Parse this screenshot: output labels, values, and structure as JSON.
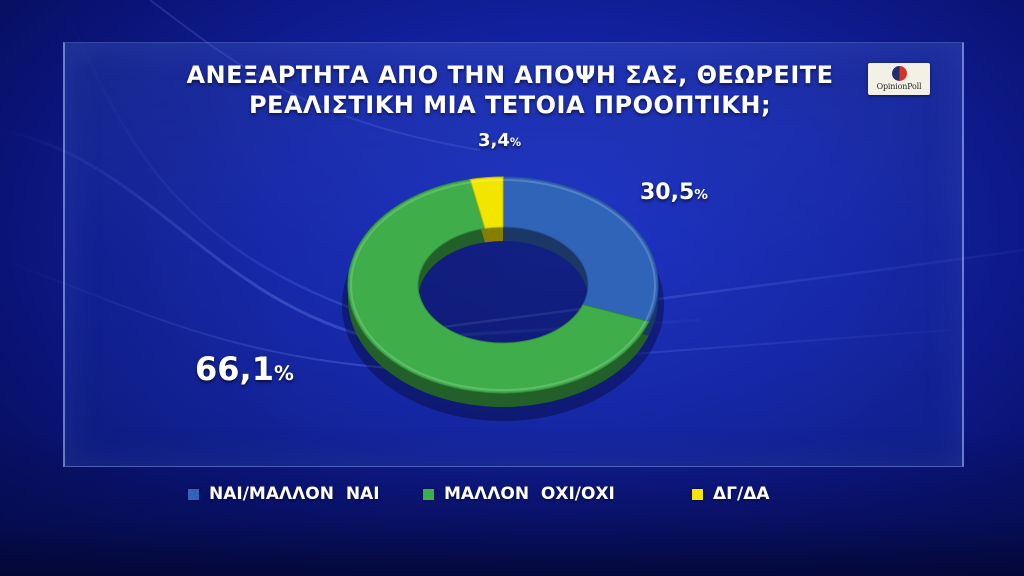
{
  "title_line1": "ΑΝΕΞΑΡΤΗΤΑ ΑΠΟ ΤΗΝ ΑΠΟΨΗ ΣΑΣ, ΘΕΩΡΕΙΤΕ",
  "title_line2": "ΡΕΑΛΙΣΤΙΚΗ ΜΙΑ ΤΕΤΟΙΑ ΠΡΟΟΠΤΙΚΗ;",
  "logo": {
    "text": "OpinionPoll"
  },
  "colors": {
    "background": "#1423a6",
    "nai": "#2f64b8",
    "oxi": "#3fae4a",
    "dgda": "#f2e600"
  },
  "chart_data": {
    "type": "pie",
    "style": "donut",
    "title": "ΑΝΕΞΑΡΤΗΤΑ ΑΠΟ ΤΗΝ ΑΠΟΨΗ ΣΑΣ, ΘΕΩΡΕΙΤΕ ΡΕΑΛΙΣΤΙΚΗ ΜΙΑ ΤΕΤΟΙΑ ΠΡΟΟΠΤΙΚΗ;",
    "legend_position": "bottom",
    "slices": [
      {
        "name": "ΝΑΙ/ΜΑΛΛΟΝ  ΝΑΙ",
        "value": 30.5,
        "label_num": "30,5",
        "label_unit": "%",
        "color": "#2f64b8"
      },
      {
        "name": "ΜΑΛΛΟΝ  ΟΧΙ/ΟΧΙ",
        "value": 66.1,
        "label_num": "66,1",
        "label_unit": "%",
        "color": "#3fae4a"
      },
      {
        "name": "ΔΓ/ΔΑ",
        "value": 3.4,
        "label_num": "3,4",
        "label_unit": "%",
        "color": "#f2e600"
      }
    ]
  }
}
